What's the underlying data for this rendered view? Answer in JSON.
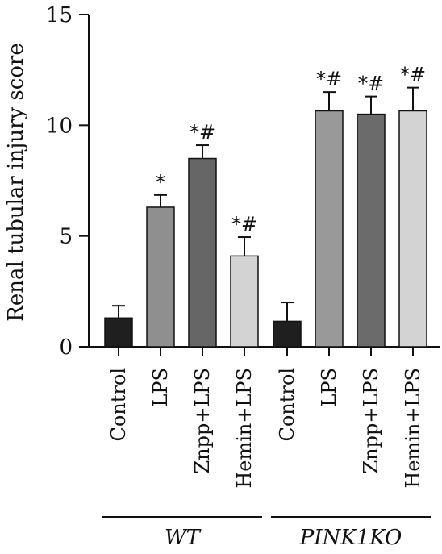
{
  "chart_data": {
    "type": "bar",
    "ylabel": "Renal tubular injury score",
    "xlabel": "",
    "ylim": [
      0,
      15
    ],
    "yticks": [
      0,
      5,
      10,
      15
    ],
    "categories": [
      "Control",
      "LPS",
      "Znpp+LPS",
      "Hemin+LPS",
      "Control",
      "LPS",
      "Znpp+LPS",
      "Hemin+LPS"
    ],
    "values": [
      1.3,
      6.3,
      8.5,
      4.1,
      1.15,
      10.65,
      10.5,
      10.65
    ],
    "errors": [
      0.55,
      0.55,
      0.6,
      0.85,
      0.85,
      0.85,
      0.8,
      1.05
    ],
    "annotations": [
      "",
      "*",
      "*#",
      "*#",
      "",
      "*#",
      "*#",
      "*#"
    ],
    "bar_colors": [
      "#1f1f1f",
      "#8f8f8f",
      "#666666",
      "#d3d3d3",
      "#1f1f1f",
      "#999999",
      "#6b6b6b",
      "#d3d3d3"
    ],
    "groups": [
      {
        "label": "WT",
        "members": [
          0,
          1,
          2,
          3
        ]
      },
      {
        "label": "PINK1KO",
        "members": [
          4,
          5,
          6,
          7
        ]
      }
    ],
    "grid": false
  }
}
